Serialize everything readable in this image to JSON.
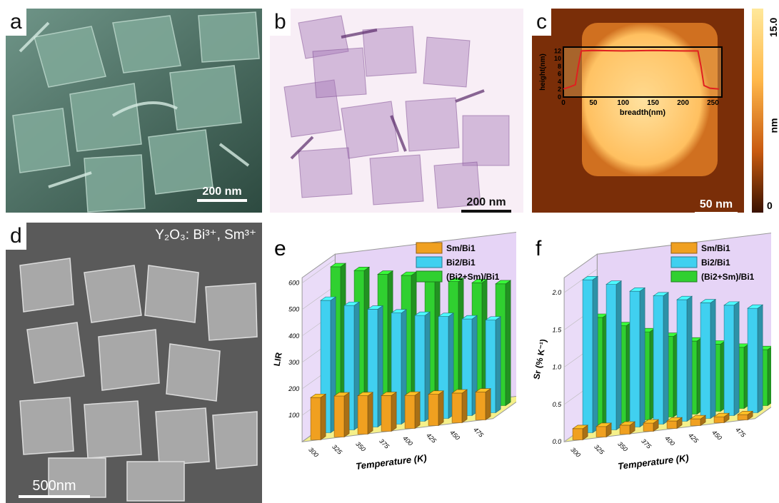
{
  "panels": {
    "a": {
      "label": "a",
      "scale_bar": "200 nm"
    },
    "b": {
      "label": "b",
      "scale_bar": "200 nm"
    },
    "c": {
      "label": "c",
      "scale_bar": "50 nm",
      "colorbar": {
        "max": "15.0",
        "unit": "nm",
        "min": "0"
      },
      "inset": {
        "xlabel": "breadth(nm)",
        "ylabel": "height(nm)",
        "xticks": [
          "0",
          "50",
          "100",
          "150",
          "200",
          "250"
        ],
        "yticks": [
          "0",
          "2",
          "4",
          "6",
          "8",
          "10",
          "12"
        ],
        "profile": {
          "x": [
            0,
            10,
            20,
            25,
            30,
            50,
            100,
            150,
            200,
            225,
            230,
            235,
            245,
            260
          ],
          "y": [
            2.1,
            2.6,
            3.2,
            8,
            12,
            12.1,
            12,
            12.1,
            12,
            12,
            8,
            3,
            2.3,
            2.1
          ]
        }
      }
    },
    "d": {
      "label": "d",
      "scale_bar": "500nm",
      "material": "Y₂O₃: Bi³⁺, Sm³⁺"
    },
    "e": {
      "label": "e"
    },
    "f": {
      "label": "f"
    }
  },
  "chart_data": [
    {
      "type": "bar",
      "title": "",
      "xlabel": "Temperature (K)",
      "ylabel": "LIR",
      "categories": [
        "300",
        "325",
        "350",
        "375",
        "400",
        "425",
        "450",
        "475"
      ],
      "yticks": [
        "100",
        "200",
        "300",
        "400",
        "500",
        "600"
      ],
      "ylim": [
        0,
        620
      ],
      "legend_position": "top-right",
      "series": [
        {
          "name": "Sm/Bi1",
          "color": "#f0a020",
          "values": [
            160,
            155,
            145,
            135,
            125,
            118,
            112,
            105
          ]
        },
        {
          "name": "Bi2/Bi1",
          "color": "#40d0f0",
          "values": [
            500,
            470,
            445,
            420,
            400,
            385,
            365,
            350
          ]
        },
        {
          "name": "(Bi2+Sm)/Bi1",
          "color": "#30d030",
          "values": [
            600,
            575,
            550,
            535,
            510,
            490,
            475,
            460
          ]
        }
      ]
    },
    {
      "type": "bar",
      "title": "",
      "xlabel": "Temperature (K)",
      "ylabel": "Sr (% K⁻¹)",
      "categories": [
        "300",
        "325",
        "350",
        "375",
        "400",
        "425",
        "450",
        "475"
      ],
      "yticks": [
        "0.0",
        "0.5",
        "1.0",
        "1.5",
        "2.0"
      ],
      "ylim": [
        0,
        2.2
      ],
      "legend_position": "top-right",
      "series": [
        {
          "name": "Sm/Bi1",
          "color": "#f0a020",
          "values": [
            0.15,
            0.14,
            0.12,
            0.11,
            0.1,
            0.09,
            0.08,
            0.07
          ]
        },
        {
          "name": "Bi2/Bi1",
          "color": "#40d0f0",
          "values": [
            2.05,
            1.95,
            1.82,
            1.72,
            1.63,
            1.55,
            1.48,
            1.4
          ]
        },
        {
          "name": "(Bi2+Sm)/Bi1",
          "color": "#30d030",
          "values": [
            1.45,
            1.3,
            1.18,
            1.08,
            0.98,
            0.9,
            0.82,
            0.75
          ]
        }
      ]
    }
  ]
}
